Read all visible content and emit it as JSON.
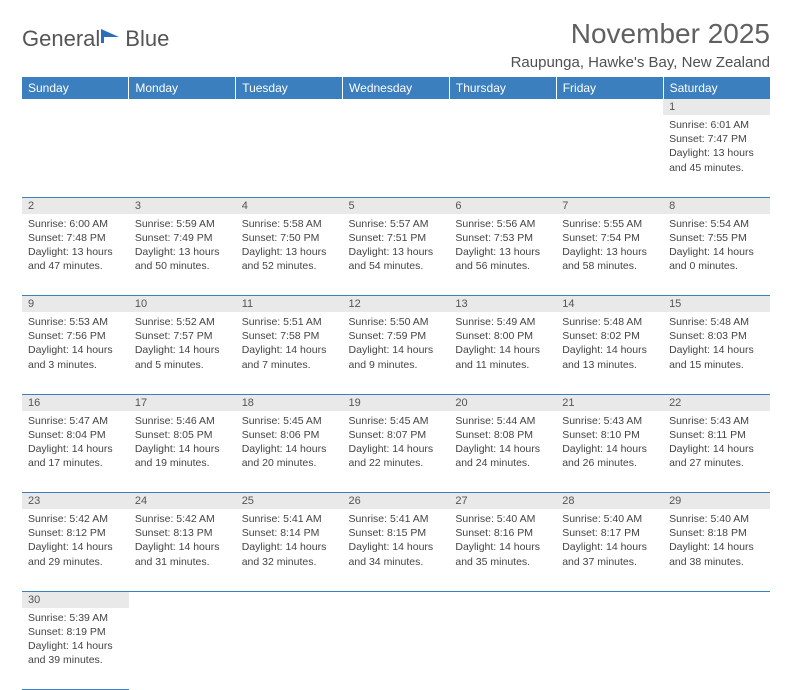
{
  "logo": {
    "text1": "General",
    "text2": "Blue",
    "icon_color": "#2a6db8"
  },
  "title": "November 2025",
  "location": "Raupunga, Hawke's Bay, New Zealand",
  "colors": {
    "header_bg": "#3b7fbf",
    "header_fg": "#ffffff",
    "daynum_bg": "#e9e9e9",
    "row_divider": "#3b7fbf",
    "text": "#444444",
    "title_color": "#606060"
  },
  "day_headers": [
    "Sunday",
    "Monday",
    "Tuesday",
    "Wednesday",
    "Thursday",
    "Friday",
    "Saturday"
  ],
  "weeks": [
    {
      "nums": [
        "",
        "",
        "",
        "",
        "",
        "",
        "1"
      ],
      "cells": [
        null,
        null,
        null,
        null,
        null,
        null,
        {
          "sunrise": "6:01 AM",
          "sunset": "7:47 PM",
          "daylight": "13 hours and 45 minutes."
        }
      ]
    },
    {
      "nums": [
        "2",
        "3",
        "4",
        "5",
        "6",
        "7",
        "8"
      ],
      "cells": [
        {
          "sunrise": "6:00 AM",
          "sunset": "7:48 PM",
          "daylight": "13 hours and 47 minutes."
        },
        {
          "sunrise": "5:59 AM",
          "sunset": "7:49 PM",
          "daylight": "13 hours and 50 minutes."
        },
        {
          "sunrise": "5:58 AM",
          "sunset": "7:50 PM",
          "daylight": "13 hours and 52 minutes."
        },
        {
          "sunrise": "5:57 AM",
          "sunset": "7:51 PM",
          "daylight": "13 hours and 54 minutes."
        },
        {
          "sunrise": "5:56 AM",
          "sunset": "7:53 PM",
          "daylight": "13 hours and 56 minutes."
        },
        {
          "sunrise": "5:55 AM",
          "sunset": "7:54 PM",
          "daylight": "13 hours and 58 minutes."
        },
        {
          "sunrise": "5:54 AM",
          "sunset": "7:55 PM",
          "daylight": "14 hours and 0 minutes."
        }
      ]
    },
    {
      "nums": [
        "9",
        "10",
        "11",
        "12",
        "13",
        "14",
        "15"
      ],
      "cells": [
        {
          "sunrise": "5:53 AM",
          "sunset": "7:56 PM",
          "daylight": "14 hours and 3 minutes."
        },
        {
          "sunrise": "5:52 AM",
          "sunset": "7:57 PM",
          "daylight": "14 hours and 5 minutes."
        },
        {
          "sunrise": "5:51 AM",
          "sunset": "7:58 PM",
          "daylight": "14 hours and 7 minutes."
        },
        {
          "sunrise": "5:50 AM",
          "sunset": "7:59 PM",
          "daylight": "14 hours and 9 minutes."
        },
        {
          "sunrise": "5:49 AM",
          "sunset": "8:00 PM",
          "daylight": "14 hours and 11 minutes."
        },
        {
          "sunrise": "5:48 AM",
          "sunset": "8:02 PM",
          "daylight": "14 hours and 13 minutes."
        },
        {
          "sunrise": "5:48 AM",
          "sunset": "8:03 PM",
          "daylight": "14 hours and 15 minutes."
        }
      ]
    },
    {
      "nums": [
        "16",
        "17",
        "18",
        "19",
        "20",
        "21",
        "22"
      ],
      "cells": [
        {
          "sunrise": "5:47 AM",
          "sunset": "8:04 PM",
          "daylight": "14 hours and 17 minutes."
        },
        {
          "sunrise": "5:46 AM",
          "sunset": "8:05 PM",
          "daylight": "14 hours and 19 minutes."
        },
        {
          "sunrise": "5:45 AM",
          "sunset": "8:06 PM",
          "daylight": "14 hours and 20 minutes."
        },
        {
          "sunrise": "5:45 AM",
          "sunset": "8:07 PM",
          "daylight": "14 hours and 22 minutes."
        },
        {
          "sunrise": "5:44 AM",
          "sunset": "8:08 PM",
          "daylight": "14 hours and 24 minutes."
        },
        {
          "sunrise": "5:43 AM",
          "sunset": "8:10 PM",
          "daylight": "14 hours and 26 minutes."
        },
        {
          "sunrise": "5:43 AM",
          "sunset": "8:11 PM",
          "daylight": "14 hours and 27 minutes."
        }
      ]
    },
    {
      "nums": [
        "23",
        "24",
        "25",
        "26",
        "27",
        "28",
        "29"
      ],
      "cells": [
        {
          "sunrise": "5:42 AM",
          "sunset": "8:12 PM",
          "daylight": "14 hours and 29 minutes."
        },
        {
          "sunrise": "5:42 AM",
          "sunset": "8:13 PM",
          "daylight": "14 hours and 31 minutes."
        },
        {
          "sunrise": "5:41 AM",
          "sunset": "8:14 PM",
          "daylight": "14 hours and 32 minutes."
        },
        {
          "sunrise": "5:41 AM",
          "sunset": "8:15 PM",
          "daylight": "14 hours and 34 minutes."
        },
        {
          "sunrise": "5:40 AM",
          "sunset": "8:16 PM",
          "daylight": "14 hours and 35 minutes."
        },
        {
          "sunrise": "5:40 AM",
          "sunset": "8:17 PM",
          "daylight": "14 hours and 37 minutes."
        },
        {
          "sunrise": "5:40 AM",
          "sunset": "8:18 PM",
          "daylight": "14 hours and 38 minutes."
        }
      ]
    },
    {
      "nums": [
        "30",
        "",
        "",
        "",
        "",
        "",
        ""
      ],
      "cells": [
        {
          "sunrise": "5:39 AM",
          "sunset": "8:19 PM",
          "daylight": "14 hours and 39 minutes."
        },
        null,
        null,
        null,
        null,
        null,
        null
      ]
    }
  ],
  "labels": {
    "sunrise": "Sunrise:",
    "sunset": "Sunset:",
    "daylight": "Daylight:"
  }
}
